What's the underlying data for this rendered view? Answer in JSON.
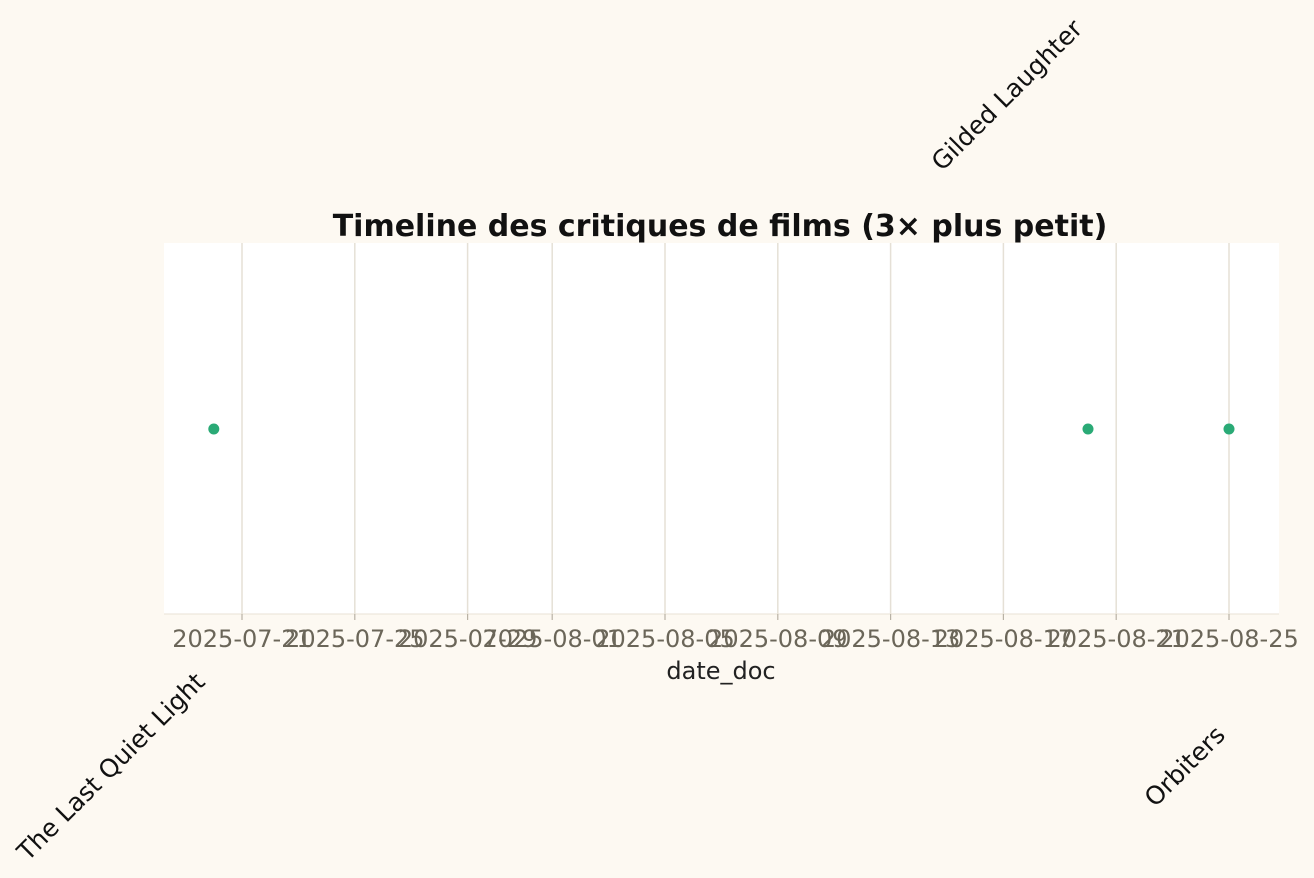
{
  "chart_data": {
    "type": "scatter",
    "title": "Timeline des critiques de films (3× plus petit)",
    "xlabel": "date_doc",
    "ylabel": "",
    "x_axis": {
      "type": "date",
      "range": [
        "2025-07-18",
        "2025-08-26"
      ],
      "ticks": [
        "2025-07-21",
        "2025-07-25",
        "2025-07-29",
        "2025-08-01",
        "2025-08-05",
        "2025-08-09",
        "2025-08-13",
        "2025-08-17",
        "2025-08-21",
        "2025-08-25"
      ]
    },
    "grid": true,
    "legend": "none",
    "point_color": "#2aaa76",
    "points": [
      {
        "x": "2025-07-20",
        "label": "The Last Quiet Light",
        "label_side": "below"
      },
      {
        "x": "2025-08-20",
        "label": "Gilded Laughter",
        "label_side": "above"
      },
      {
        "x": "2025-08-25",
        "label": "Orbiters",
        "label_side": "below"
      }
    ]
  }
}
